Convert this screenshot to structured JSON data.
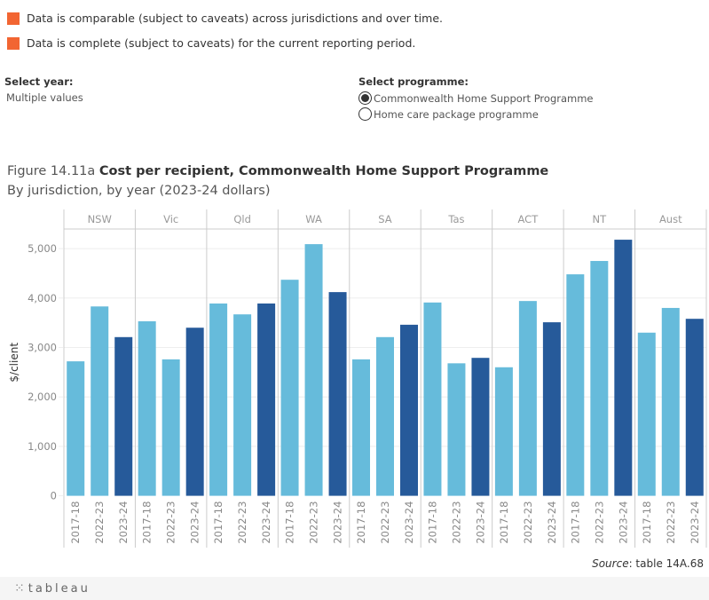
{
  "legend": [
    {
      "text": "Data is comparable (subject to caveats) across jurisdictions and over time.",
      "color": "#F26532"
    },
    {
      "text": "Data is complete (subject to caveats) for the current reporting period.",
      "color": "#F26532"
    }
  ],
  "filters": {
    "year": {
      "title": "Select year:",
      "value": "Multiple values"
    },
    "programme": {
      "title": "Select programme:",
      "options": [
        {
          "label": "Commonwealth Home Support Programme",
          "selected": true
        },
        {
          "label": "Home care package programme",
          "selected": false
        }
      ]
    }
  },
  "figure": {
    "number": "Figure 14.11a",
    "title": "Cost per recipient, Commonwealth Home Support Programme",
    "subtitle": "By jurisdiction, by year (2023-24 dollars)"
  },
  "source": {
    "label": "Source",
    "text": ": table 14A.68"
  },
  "footer": {
    "brand": "tableau",
    "logo_icon": "tableau-cross-icon"
  },
  "chart_data": {
    "type": "bar",
    "title": "Cost per recipient, Commonwealth Home Support Programme",
    "xlabel": "",
    "ylabel": "$/client",
    "ylim": [
      0,
      5400
    ],
    "yticks": [
      0,
      1000,
      2000,
      3000,
      4000,
      5000
    ],
    "ytick_labels": [
      "0",
      "1,000",
      "2,000",
      "3,000",
      "4,000",
      "5,000"
    ],
    "grid": true,
    "categories": [
      "NSW",
      "Vic",
      "Qld",
      "WA",
      "SA",
      "Tas",
      "ACT",
      "NT",
      "Aust"
    ],
    "sub_categories": [
      "2017-18",
      "2022-23",
      "2023-24"
    ],
    "colors": {
      "2017-18": "#66BBDB",
      "2022-23": "#66BBDB",
      "2023-24": "#265A9A"
    },
    "series": [
      {
        "name": "2017-18",
        "values": [
          2720,
          3530,
          3890,
          4370,
          2760,
          3910,
          2600,
          4480,
          3300
        ]
      },
      {
        "name": "2022-23",
        "values": [
          3830,
          2760,
          3670,
          5090,
          3210,
          2680,
          3940,
          4750,
          3800
        ]
      },
      {
        "name": "2023-24",
        "values": [
          3210,
          3400,
          3890,
          4120,
          3460,
          2790,
          3510,
          5180,
          3580
        ]
      }
    ]
  }
}
